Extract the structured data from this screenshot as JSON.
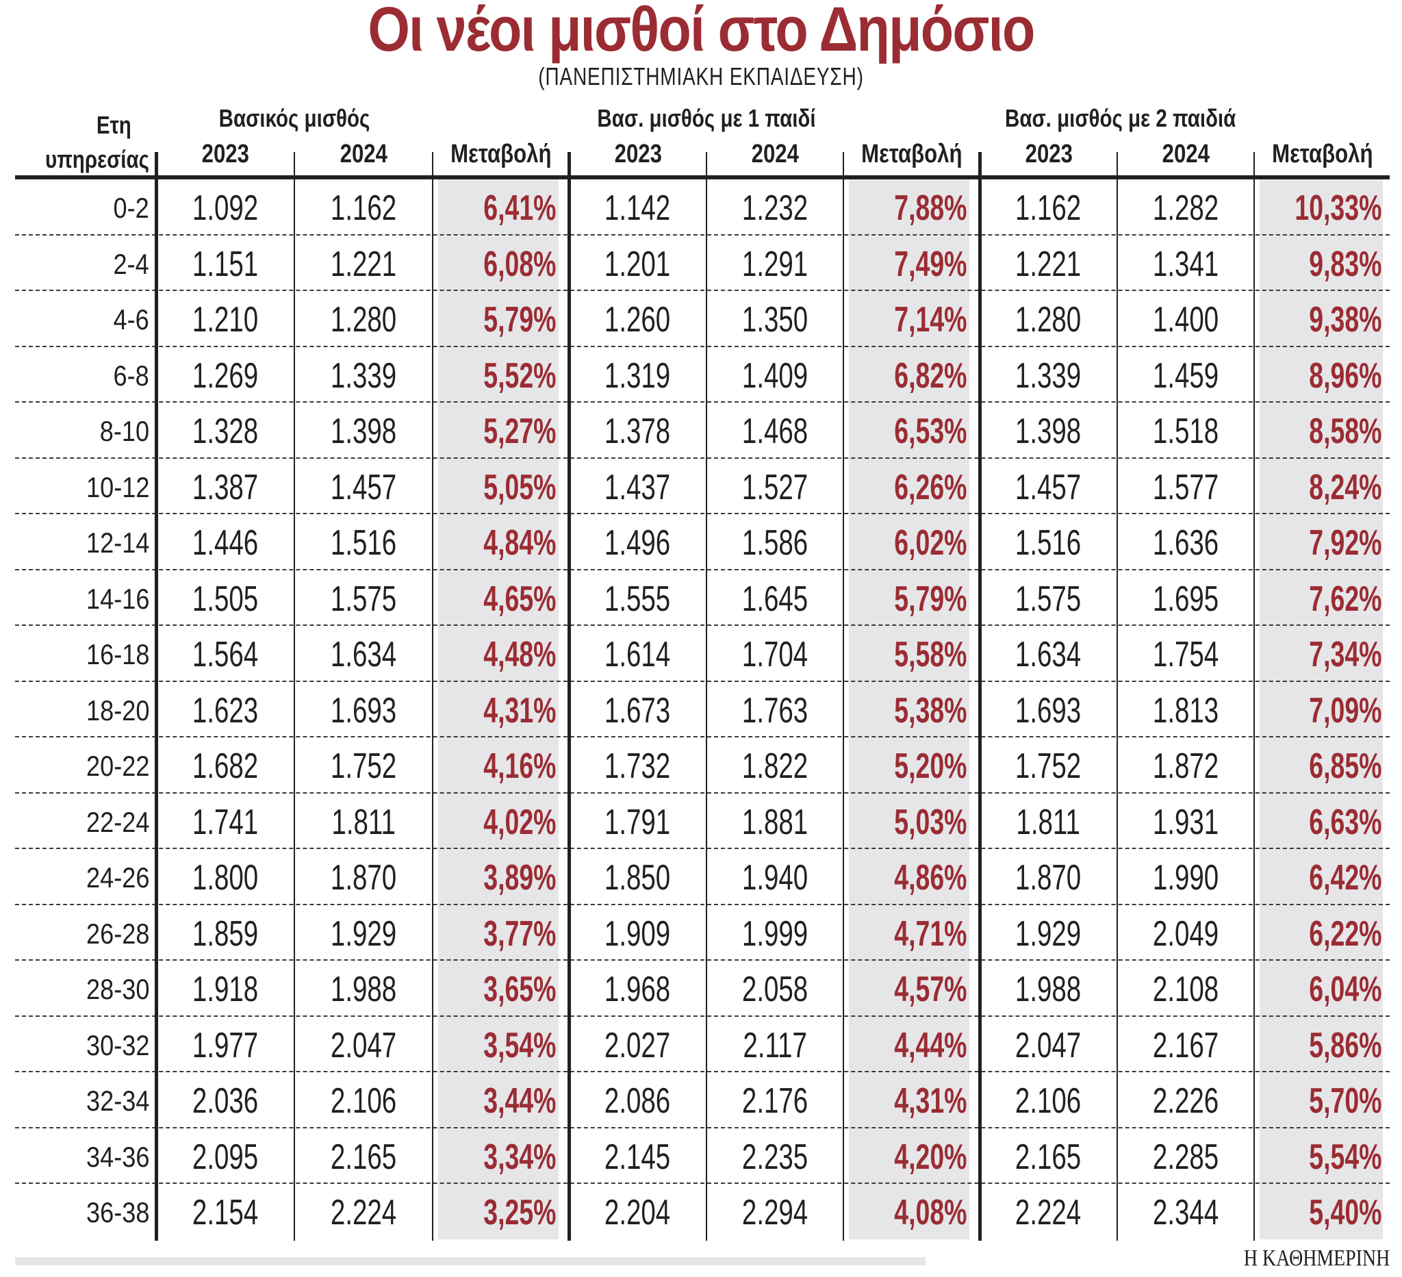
{
  "title": "Οι νέοι μισθοί στο Δημόσιο",
  "subtitle": "(ΠΑΝΕΠΙΣΤΗΜΙΑΚΗ ΕΚΠΑΙΔΕΥΣΗ)",
  "header": {
    "years_line1": "Ετη",
    "years_line2": "υπηρεσίας",
    "groups": [
      "Βασικός μισθός",
      "Βασ. μισθός με 1 παιδί",
      "Βασ. μισθός με 2 παιδιά"
    ],
    "sub": [
      "2023",
      "2024",
      "Μεταβολή",
      "2023",
      "2024",
      "Μεταβολή",
      "2023",
      "2024",
      "Μεταβολή"
    ]
  },
  "colors": {
    "accent": "#9b2c33",
    "text": "#231f20",
    "shade": "#e6e6e8"
  },
  "rows": [
    {
      "years": "0-2",
      "b23": "1.092",
      "b24": "1.162",
      "bch": "6,41%",
      "c1_23": "1.142",
      "c1_24": "1.232",
      "c1ch": "7,88%",
      "c2_23": "1.162",
      "c2_24": "1.282",
      "c2ch": "10,33%"
    },
    {
      "years": "2-4",
      "b23": "1.151",
      "b24": "1.221",
      "bch": "6,08%",
      "c1_23": "1.201",
      "c1_24": "1.291",
      "c1ch": "7,49%",
      "c2_23": "1.221",
      "c2_24": "1.341",
      "c2ch": "9,83%"
    },
    {
      "years": "4-6",
      "b23": "1.210",
      "b24": "1.280",
      "bch": "5,79%",
      "c1_23": "1.260",
      "c1_24": "1.350",
      "c1ch": "7,14%",
      "c2_23": "1.280",
      "c2_24": "1.400",
      "c2ch": "9,38%"
    },
    {
      "years": "6-8",
      "b23": "1.269",
      "b24": "1.339",
      "bch": "5,52%",
      "c1_23": "1.319",
      "c1_24": "1.409",
      "c1ch": "6,82%",
      "c2_23": "1.339",
      "c2_24": "1.459",
      "c2ch": "8,96%"
    },
    {
      "years": "8-10",
      "b23": "1.328",
      "b24": "1.398",
      "bch": "5,27%",
      "c1_23": "1.378",
      "c1_24": "1.468",
      "c1ch": "6,53%",
      "c2_23": "1.398",
      "c2_24": "1.518",
      "c2ch": "8,58%"
    },
    {
      "years": "10-12",
      "b23": "1.387",
      "b24": "1.457",
      "bch": "5,05%",
      "c1_23": "1.437",
      "c1_24": "1.527",
      "c1ch": "6,26%",
      "c2_23": "1.457",
      "c2_24": "1.577",
      "c2ch": "8,24%"
    },
    {
      "years": "12-14",
      "b23": "1.446",
      "b24": "1.516",
      "bch": "4,84%",
      "c1_23": "1.496",
      "c1_24": "1.586",
      "c1ch": "6,02%",
      "c2_23": "1.516",
      "c2_24": "1.636",
      "c2ch": "7,92%"
    },
    {
      "years": "14-16",
      "b23": "1.505",
      "b24": "1.575",
      "bch": "4,65%",
      "c1_23": "1.555",
      "c1_24": "1.645",
      "c1ch": "5,79%",
      "c2_23": "1.575",
      "c2_24": "1.695",
      "c2ch": "7,62%"
    },
    {
      "years": "16-18",
      "b23": "1.564",
      "b24": "1.634",
      "bch": "4,48%",
      "c1_23": "1.614",
      "c1_24": "1.704",
      "c1ch": "5,58%",
      "c2_23": "1.634",
      "c2_24": "1.754",
      "c2ch": "7,34%"
    },
    {
      "years": "18-20",
      "b23": "1.623",
      "b24": "1.693",
      "bch": "4,31%",
      "c1_23": "1.673",
      "c1_24": "1.763",
      "c1ch": "5,38%",
      "c2_23": "1.693",
      "c2_24": "1.813",
      "c2ch": "7,09%"
    },
    {
      "years": "20-22",
      "b23": "1.682",
      "b24": "1.752",
      "bch": "4,16%",
      "c1_23": "1.732",
      "c1_24": "1.822",
      "c1ch": "5,20%",
      "c2_23": "1.752",
      "c2_24": "1.872",
      "c2ch": "6,85%"
    },
    {
      "years": "22-24",
      "b23": "1.741",
      "b24": "1.811",
      "bch": "4,02%",
      "c1_23": "1.791",
      "c1_24": "1.881",
      "c1ch": "5,03%",
      "c2_23": "1.811",
      "c2_24": "1.931",
      "c2ch": "6,63%"
    },
    {
      "years": "24-26",
      "b23": "1.800",
      "b24": "1.870",
      "bch": "3,89%",
      "c1_23": "1.850",
      "c1_24": "1.940",
      "c1ch": "4,86%",
      "c2_23": "1.870",
      "c2_24": "1.990",
      "c2ch": "6,42%"
    },
    {
      "years": "26-28",
      "b23": "1.859",
      "b24": "1.929",
      "bch": "3,77%",
      "c1_23": "1.909",
      "c1_24": "1.999",
      "c1ch": "4,71%",
      "c2_23": "1.929",
      "c2_24": "2.049",
      "c2ch": "6,22%"
    },
    {
      "years": "28-30",
      "b23": "1.918",
      "b24": "1.988",
      "bch": "3,65%",
      "c1_23": "1.968",
      "c1_24": "2.058",
      "c1ch": "4,57%",
      "c2_23": "1.988",
      "c2_24": "2.108",
      "c2ch": "6,04%"
    },
    {
      "years": "30-32",
      "b23": "1.977",
      "b24": "2.047",
      "bch": "3,54%",
      "c1_23": "2.027",
      "c1_24": "2.117",
      "c1ch": "4,44%",
      "c2_23": "2.047",
      "c2_24": "2.167",
      "c2ch": "5,86%"
    },
    {
      "years": "32-34",
      "b23": "2.036",
      "b24": "2.106",
      "bch": "3,44%",
      "c1_23": "2.086",
      "c1_24": "2.176",
      "c1ch": "4,31%",
      "c2_23": "2.106",
      "c2_24": "2.226",
      "c2ch": "5,70%"
    },
    {
      "years": "34-36",
      "b23": "2.095",
      "b24": "2.165",
      "bch": "3,34%",
      "c1_23": "2.145",
      "c1_24": "2.235",
      "c1ch": "4,20%",
      "c2_23": "2.165",
      "c2_24": "2.285",
      "c2ch": "5,54%"
    },
    {
      "years": "36-38",
      "b23": "2.154",
      "b24": "2.224",
      "bch": "3,25%",
      "c1_23": "2.204",
      "c1_24": "2.294",
      "c1ch": "4,08%",
      "c2_23": "2.224",
      "c2_24": "2.344",
      "c2ch": "5,40%"
    }
  ],
  "footer": {
    "source": "Η ΚΑΘΗΜΕΡΙΝΗ"
  },
  "chart_data": {
    "type": "table",
    "title": "Οι νέοι μισθοί στο Δημόσιο",
    "subtitle": "(ΠΑΝΕΠΙΣΤΗΜΙΑΚΗ ΕΚΠΑΙΔΕΥΣΗ)",
    "columns": [
      "Ετη υπηρεσίας",
      "Βασικός μισθός 2023",
      "Βασικός μισθός 2024",
      "Βασικός μισθός Μεταβολή",
      "Βασ. μισθός με 1 παιδί 2023",
      "Βασ. μισθός με 1 παιδί 2024",
      "Βασ. μισθός με 1 παιδί Μεταβολή",
      "Βασ. μισθός με 2 παιδιά 2023",
      "Βασ. μισθός με 2 παιδιά 2024",
      "Βασ. μισθός με 2 παιδιά Μεταβολή"
    ],
    "categories": [
      "0-2",
      "2-4",
      "4-6",
      "6-8",
      "8-10",
      "10-12",
      "12-14",
      "14-16",
      "16-18",
      "18-20",
      "20-22",
      "22-24",
      "24-26",
      "26-28",
      "28-30",
      "30-32",
      "32-34",
      "34-36",
      "36-38"
    ],
    "series": [
      {
        "name": "Βασικός μισθός 2023",
        "values": [
          1092,
          1151,
          1210,
          1269,
          1328,
          1387,
          1446,
          1505,
          1564,
          1623,
          1682,
          1741,
          1800,
          1859,
          1918,
          1977,
          2036,
          2095,
          2154
        ]
      },
      {
        "name": "Βασικός μισθός 2024",
        "values": [
          1162,
          1221,
          1280,
          1339,
          1398,
          1457,
          1516,
          1575,
          1634,
          1693,
          1752,
          1811,
          1870,
          1929,
          1988,
          2047,
          2106,
          2165,
          2224
        ]
      },
      {
        "name": "Βασικός μισθός Μεταβολή (%)",
        "values": [
          6.41,
          6.08,
          5.79,
          5.52,
          5.27,
          5.05,
          4.84,
          4.65,
          4.48,
          4.31,
          4.16,
          4.02,
          3.89,
          3.77,
          3.65,
          3.54,
          3.44,
          3.34,
          3.25
        ]
      },
      {
        "name": "Με 1 παιδί 2023",
        "values": [
          1142,
          1201,
          1260,
          1319,
          1378,
          1437,
          1496,
          1555,
          1614,
          1673,
          1732,
          1791,
          1850,
          1909,
          1968,
          2027,
          2086,
          2145,
          2204
        ]
      },
      {
        "name": "Με 1 παιδί 2024",
        "values": [
          1232,
          1291,
          1350,
          1409,
          1468,
          1527,
          1586,
          1645,
          1704,
          1763,
          1822,
          1881,
          1940,
          1999,
          2058,
          2117,
          2176,
          2235,
          2294
        ]
      },
      {
        "name": "Με 1 παιδί Μεταβολή (%)",
        "values": [
          7.88,
          7.49,
          7.14,
          6.82,
          6.53,
          6.26,
          6.02,
          5.79,
          5.58,
          5.38,
          5.2,
          5.03,
          4.86,
          4.71,
          4.57,
          4.44,
          4.31,
          4.2,
          4.08
        ]
      },
      {
        "name": "Με 2 παιδιά 2023",
        "values": [
          1162,
          1221,
          1280,
          1339,
          1398,
          1457,
          1516,
          1575,
          1634,
          1693,
          1752,
          1811,
          1870,
          1929,
          1988,
          2047,
          2106,
          2165,
          2224
        ]
      },
      {
        "name": "Με 2 παιδιά 2024",
        "values": [
          1282,
          1341,
          1400,
          1459,
          1518,
          1577,
          1636,
          1695,
          1754,
          1813,
          1872,
          1931,
          1990,
          2049,
          2108,
          2167,
          2226,
          2285,
          2344
        ]
      },
      {
        "name": "Με 2 παιδιά Μεταβολή (%)",
        "values": [
          10.33,
          9.83,
          9.38,
          8.96,
          8.58,
          8.24,
          7.92,
          7.62,
          7.34,
          7.09,
          6.85,
          6.63,
          6.42,
          6.22,
          6.04,
          5.86,
          5.7,
          5.54,
          5.4
        ]
      }
    ],
    "source": "Η ΚΑΘΗΜΕΡΙΝΗ"
  }
}
